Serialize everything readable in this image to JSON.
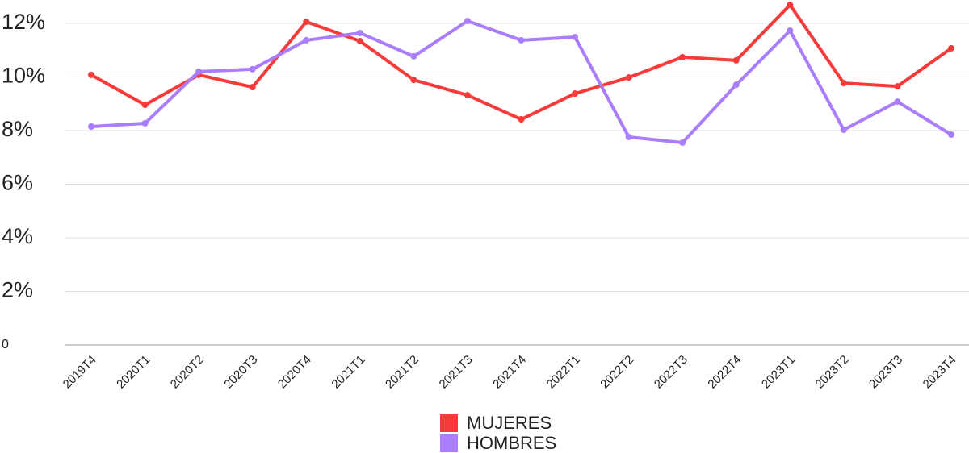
{
  "chart_data": {
    "type": "line",
    "categories": [
      "2019T4",
      "2020T1",
      "2020T2",
      "2020T3",
      "2020T4",
      "2021T1",
      "2021T2",
      "2021T3",
      "2021T4",
      "2022T1",
      "2022T2",
      "2022T3",
      "2022T4",
      "2023T1",
      "2023T2",
      "2023T3",
      "2023T4"
    ],
    "series": [
      {
        "name": "MUJERES",
        "color": "#f83a3a",
        "values": [
          10.08,
          8.96,
          10.08,
          9.62,
          12.06,
          11.34,
          9.89,
          9.32,
          8.42,
          9.38,
          9.98,
          10.74,
          10.62,
          12.69,
          9.77,
          9.65,
          11.07
        ]
      },
      {
        "name": "HOMBRES",
        "color": "#a97dfc",
        "values": [
          8.15,
          8.27,
          10.2,
          10.29,
          11.37,
          11.64,
          10.77,
          12.09,
          11.37,
          11.49,
          7.76,
          7.55,
          9.71,
          11.73,
          8.03,
          9.08,
          7.85
        ]
      }
    ],
    "ylim": [
      0,
      12.8
    ],
    "yticks": [
      0,
      {
        "value": 2,
        "label": "2%"
      },
      {
        "value": 4,
        "label": "4%"
      },
      {
        "value": 6,
        "label": "6%"
      },
      {
        "value": 8,
        "label": "8%"
      },
      {
        "value": 10,
        "label": "10%"
      },
      {
        "value": 12,
        "label": "12%"
      }
    ],
    "grid": true,
    "legend": "bottom"
  }
}
